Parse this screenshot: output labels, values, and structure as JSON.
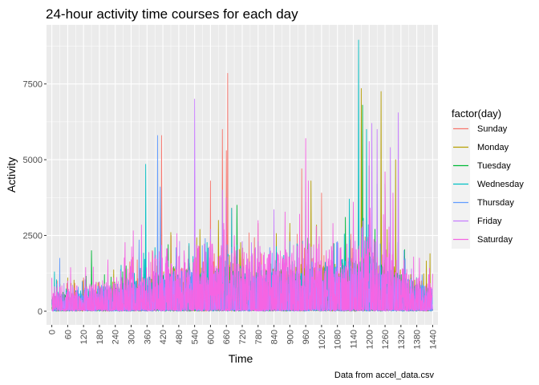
{
  "chart_data": {
    "type": "line",
    "title": "24-hour activity time courses for each day",
    "xlabel": "Time",
    "ylabel": "Activity",
    "caption": "Data from accel_data.csv",
    "xlim": [
      -20,
      1460
    ],
    "ylim": [
      -450,
      9450
    ],
    "x_ticks": [
      0,
      60,
      120,
      180,
      240,
      300,
      360,
      420,
      480,
      540,
      600,
      660,
      720,
      780,
      840,
      900,
      960,
      1020,
      1080,
      1140,
      1200,
      1260,
      1320,
      1380,
      1440
    ],
    "x_tick_labels": [
      "0",
      "60",
      "120",
      "180",
      "240",
      "300",
      "360",
      "420",
      "480",
      "540",
      "600",
      "660",
      "720",
      "780",
      "840",
      "900",
      "960",
      "1020",
      "1080",
      "1140",
      "1200",
      "1260",
      "1320",
      "1380",
      "1440"
    ],
    "y_ticks": [
      0,
      2500,
      5000,
      7500
    ],
    "y_tick_labels": [
      "0",
      "2500",
      "5000",
      "7500"
    ],
    "grid": true,
    "legend_position": "right",
    "legend_title": "factor(day)",
    "series": [
      {
        "name": "Sunday",
        "color": "#F8766D",
        "peaks": [
          [
            20,
            1000
          ],
          [
            120,
            1100
          ],
          [
            180,
            950
          ],
          [
            380,
            2000
          ],
          [
            415,
            5800
          ],
          [
            600,
            4300
          ],
          [
            645,
            6000
          ],
          [
            660,
            5300
          ],
          [
            665,
            7850
          ],
          [
            680,
            3400
          ],
          [
            700,
            2100
          ],
          [
            780,
            2900
          ],
          [
            900,
            2600
          ],
          [
            945,
            4700
          ],
          [
            1020,
            3900
          ],
          [
            1160,
            4500
          ],
          [
            1200,
            3300
          ]
        ],
        "baseline": [
          [
            0,
            500
          ],
          [
            200,
            500
          ],
          [
            300,
            800
          ],
          [
            420,
            1100
          ],
          [
            600,
            1400
          ],
          [
            720,
            1200
          ],
          [
            840,
            1100
          ],
          [
            960,
            1200
          ],
          [
            1080,
            1100
          ],
          [
            1200,
            1300
          ],
          [
            1320,
            900
          ],
          [
            1440,
            500
          ]
        ]
      },
      {
        "name": "Monday",
        "color": "#B79F00",
        "peaks": [
          [
            60,
            1100
          ],
          [
            240,
            900
          ],
          [
            450,
            2600
          ],
          [
            560,
            2700
          ],
          [
            630,
            3000
          ],
          [
            900,
            2900
          ],
          [
            980,
            4300
          ],
          [
            1170,
            7350
          ],
          [
            1245,
            7250
          ],
          [
            1300,
            5000
          ],
          [
            1430,
            1900
          ]
        ],
        "baseline": [
          [
            0,
            400
          ],
          [
            300,
            700
          ],
          [
            480,
            1200
          ],
          [
            720,
            1100
          ],
          [
            960,
            1300
          ],
          [
            1200,
            1500
          ],
          [
            1440,
            700
          ]
        ]
      },
      {
        "name": "Tuesday",
        "color": "#00BA38",
        "peaks": [
          [
            30,
            900
          ],
          [
            150,
            2000
          ],
          [
            440,
            2200
          ],
          [
            700,
            3500
          ],
          [
            1080,
            2100
          ],
          [
            1110,
            3100
          ],
          [
            1175,
            6800
          ],
          [
            1200,
            4800
          ],
          [
            1260,
            4200
          ]
        ],
        "baseline": [
          [
            0,
            400
          ],
          [
            300,
            700
          ],
          [
            480,
            1100
          ],
          [
            720,
            1100
          ],
          [
            960,
            1100
          ],
          [
            1200,
            1400
          ],
          [
            1440,
            600
          ]
        ]
      },
      {
        "name": "Wednesday",
        "color": "#00BFC4",
        "peaks": [
          [
            10,
            1300
          ],
          [
            355,
            4850
          ],
          [
            390,
            2100
          ],
          [
            680,
            3400
          ],
          [
            780,
            2300
          ],
          [
            960,
            3600
          ],
          [
            1125,
            3700
          ],
          [
            1160,
            8950
          ],
          [
            1190,
            6000
          ],
          [
            1230,
            4200
          ]
        ],
        "baseline": [
          [
            0,
            500
          ],
          [
            300,
            800
          ],
          [
            480,
            1100
          ],
          [
            720,
            1200
          ],
          [
            960,
            1200
          ],
          [
            1200,
            1500
          ],
          [
            1440,
            500
          ]
        ]
      },
      {
        "name": "Thursday",
        "color": "#619CFF",
        "peaks": [
          [
            30,
            1750
          ],
          [
            100,
            800
          ],
          [
            330,
            2350
          ],
          [
            400,
            5800
          ],
          [
            410,
            4100
          ],
          [
            470,
            2100
          ],
          [
            580,
            2400
          ],
          [
            900,
            2300
          ],
          [
            1080,
            2300
          ],
          [
            1140,
            1950
          ],
          [
            1290,
            2300
          ],
          [
            1400,
            1200
          ]
        ],
        "baseline": [
          [
            0,
            500
          ],
          [
            300,
            800
          ],
          [
            480,
            1100
          ],
          [
            720,
            1000
          ],
          [
            960,
            1100
          ],
          [
            1200,
            1300
          ],
          [
            1440,
            600
          ]
        ]
      },
      {
        "name": "Friday",
        "color": "#C77CFF",
        "peaks": [
          [
            20,
            900
          ],
          [
            540,
            7000
          ],
          [
            600,
            2700
          ],
          [
            645,
            4000
          ],
          [
            720,
            2300
          ],
          [
            770,
            2100
          ],
          [
            840,
            3350
          ],
          [
            930,
            2200
          ],
          [
            1000,
            2100
          ],
          [
            1210,
            6200
          ],
          [
            1230,
            6000
          ],
          [
            1280,
            5400
          ],
          [
            1310,
            6550
          ],
          [
            1360,
            1400
          ]
        ],
        "baseline": [
          [
            0,
            400
          ],
          [
            300,
            700
          ],
          [
            480,
            1100
          ],
          [
            720,
            1100
          ],
          [
            960,
            1100
          ],
          [
            1200,
            1400
          ],
          [
            1440,
            500
          ]
        ]
      },
      {
        "name": "Saturday",
        "color": "#F564E3",
        "peaks": [
          [
            0,
            1100
          ],
          [
            60,
            1000
          ],
          [
            200,
            900
          ],
          [
            300,
            1700
          ],
          [
            480,
            1800
          ],
          [
            600,
            2300
          ],
          [
            650,
            2900
          ],
          [
            690,
            2500
          ],
          [
            720,
            1900
          ],
          [
            960,
            5700
          ],
          [
            970,
            4300
          ],
          [
            1000,
            2800
          ],
          [
            1140,
            3600
          ],
          [
            1200,
            5600
          ],
          [
            1260,
            4600
          ],
          [
            1290,
            3900
          ],
          [
            1350,
            1200
          ],
          [
            1420,
            900
          ]
        ],
        "baseline": [
          [
            0,
            700
          ],
          [
            120,
            700
          ],
          [
            240,
            900
          ],
          [
            360,
            1600
          ],
          [
            480,
            1700
          ],
          [
            600,
            1800
          ],
          [
            720,
            1700
          ],
          [
            840,
            1600
          ],
          [
            960,
            1900
          ],
          [
            1080,
            1700
          ],
          [
            1200,
            2000
          ],
          [
            1320,
            1300
          ],
          [
            1440,
            700
          ]
        ]
      }
    ]
  }
}
